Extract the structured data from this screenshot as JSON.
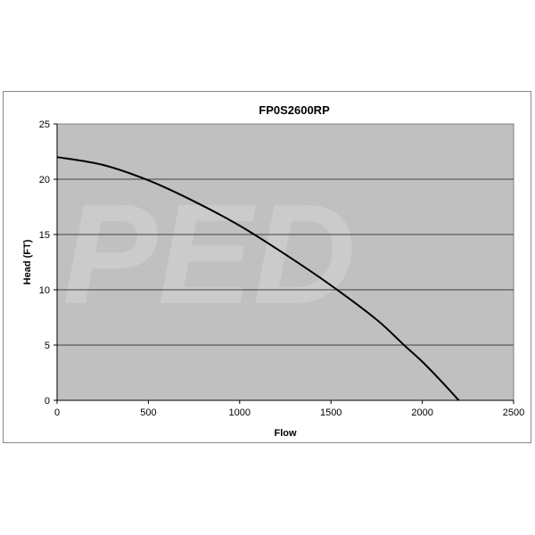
{
  "chart_data": {
    "type": "line",
    "title": "FP0S2600RP",
    "xlabel": "Flow",
    "ylabel": "Head (FT)",
    "xlim": [
      0,
      2500
    ],
    "ylim": [
      0,
      25
    ],
    "xticks": [
      "0",
      "500",
      "1000",
      "1500",
      "2000",
      "2500"
    ],
    "yticks": [
      "0",
      "5",
      "10",
      "15",
      "20",
      "25"
    ],
    "grid": "horizontal",
    "plot_background": "#c0c0c0",
    "line_color": "#000000",
    "watermark": "PED",
    "series": [
      {
        "x": [
          0,
          250,
          500,
          750,
          1000,
          1250,
          1500,
          1750,
          1900,
          2000,
          2100,
          2200
        ],
        "y": [
          22,
          21.3,
          19.9,
          18.0,
          15.8,
          13.2,
          10.4,
          7.3,
          5.0,
          3.5,
          1.8,
          0
        ]
      }
    ]
  }
}
